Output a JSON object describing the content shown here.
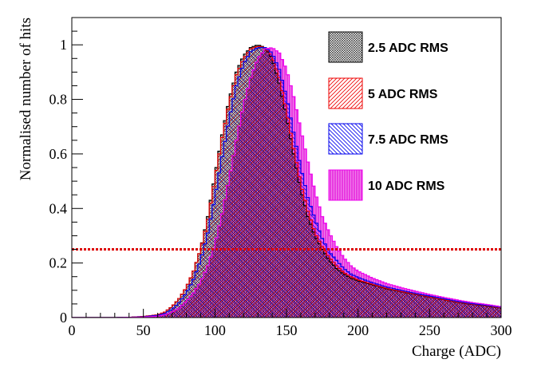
{
  "chart_data": {
    "type": "line",
    "title": "",
    "xlabel": "Charge (ADC)",
    "ylabel": "Normalised number of hits",
    "xlim": [
      0,
      300
    ],
    "ylim": [
      0,
      1.1
    ],
    "xticks": [
      0,
      50,
      100,
      150,
      200,
      250,
      300
    ],
    "yticks": [
      0,
      0.2,
      0.4,
      0.6,
      0.8,
      1
    ],
    "grid": false,
    "legend_position": "top-right",
    "threshold_line": {
      "y": 0.25,
      "color": "#dd0000",
      "style": "dotted"
    },
    "x": [
      20,
      30,
      40,
      50,
      60,
      65,
      70,
      75,
      80,
      85,
      90,
      95,
      100,
      105,
      110,
      115,
      120,
      125,
      130,
      135,
      140,
      145,
      150,
      155,
      160,
      165,
      170,
      175,
      180,
      185,
      190,
      195,
      200,
      210,
      220,
      230,
      240,
      250,
      260,
      270,
      280,
      290,
      300
    ],
    "series": [
      {
        "name": "2.5 ADC RMS",
        "color": "#000000",
        "values": [
          0.0,
          0.0,
          0.001,
          0.004,
          0.01,
          0.02,
          0.04,
          0.07,
          0.11,
          0.17,
          0.25,
          0.37,
          0.52,
          0.67,
          0.8,
          0.9,
          0.96,
          0.99,
          1.0,
          0.99,
          0.95,
          0.86,
          0.74,
          0.6,
          0.47,
          0.37,
          0.3,
          0.25,
          0.21,
          0.18,
          0.16,
          0.145,
          0.135,
          0.12,
          0.105,
          0.095,
          0.085,
          0.075,
          0.065,
          0.055,
          0.048,
          0.042,
          0.035
        ]
      },
      {
        "name": "5 ADC RMS",
        "color": "#ee0000",
        "values": [
          0.0,
          0.0,
          0.001,
          0.004,
          0.01,
          0.02,
          0.04,
          0.07,
          0.11,
          0.17,
          0.25,
          0.36,
          0.51,
          0.66,
          0.79,
          0.89,
          0.95,
          0.985,
          0.995,
          0.99,
          0.96,
          0.88,
          0.76,
          0.62,
          0.49,
          0.39,
          0.31,
          0.26,
          0.22,
          0.19,
          0.165,
          0.15,
          0.138,
          0.122,
          0.107,
          0.096,
          0.086,
          0.076,
          0.066,
          0.056,
          0.049,
          0.043,
          0.036
        ]
      },
      {
        "name": "7.5 ADC RMS",
        "color": "#0000ee",
        "values": [
          0.0,
          0.0,
          0.001,
          0.003,
          0.008,
          0.015,
          0.03,
          0.055,
          0.09,
          0.14,
          0.21,
          0.31,
          0.44,
          0.59,
          0.73,
          0.85,
          0.93,
          0.975,
          0.99,
          0.99,
          0.97,
          0.91,
          0.81,
          0.68,
          0.55,
          0.44,
          0.36,
          0.29,
          0.24,
          0.21,
          0.18,
          0.16,
          0.147,
          0.128,
          0.112,
          0.1,
          0.089,
          0.079,
          0.069,
          0.059,
          0.051,
          0.045,
          0.038
        ]
      },
      {
        "name": "10 ADC RMS",
        "color": "#ee00ee",
        "values": [
          0.0,
          0.0,
          0.001,
          0.002,
          0.005,
          0.01,
          0.02,
          0.035,
          0.06,
          0.09,
          0.13,
          0.19,
          0.27,
          0.38,
          0.51,
          0.65,
          0.78,
          0.88,
          0.95,
          0.985,
          0.99,
          0.97,
          0.91,
          0.81,
          0.69,
          0.57,
          0.46,
          0.37,
          0.31,
          0.26,
          0.22,
          0.19,
          0.17,
          0.145,
          0.125,
          0.11,
          0.097,
          0.085,
          0.074,
          0.064,
          0.055,
          0.048,
          0.04
        ]
      }
    ]
  },
  "colors": {
    "fill_magenta": "#e83be0",
    "fill_black_hatch": "#222222",
    "fill_red_hatch": "#ee0000",
    "fill_blue_hatch": "#0000ee"
  }
}
